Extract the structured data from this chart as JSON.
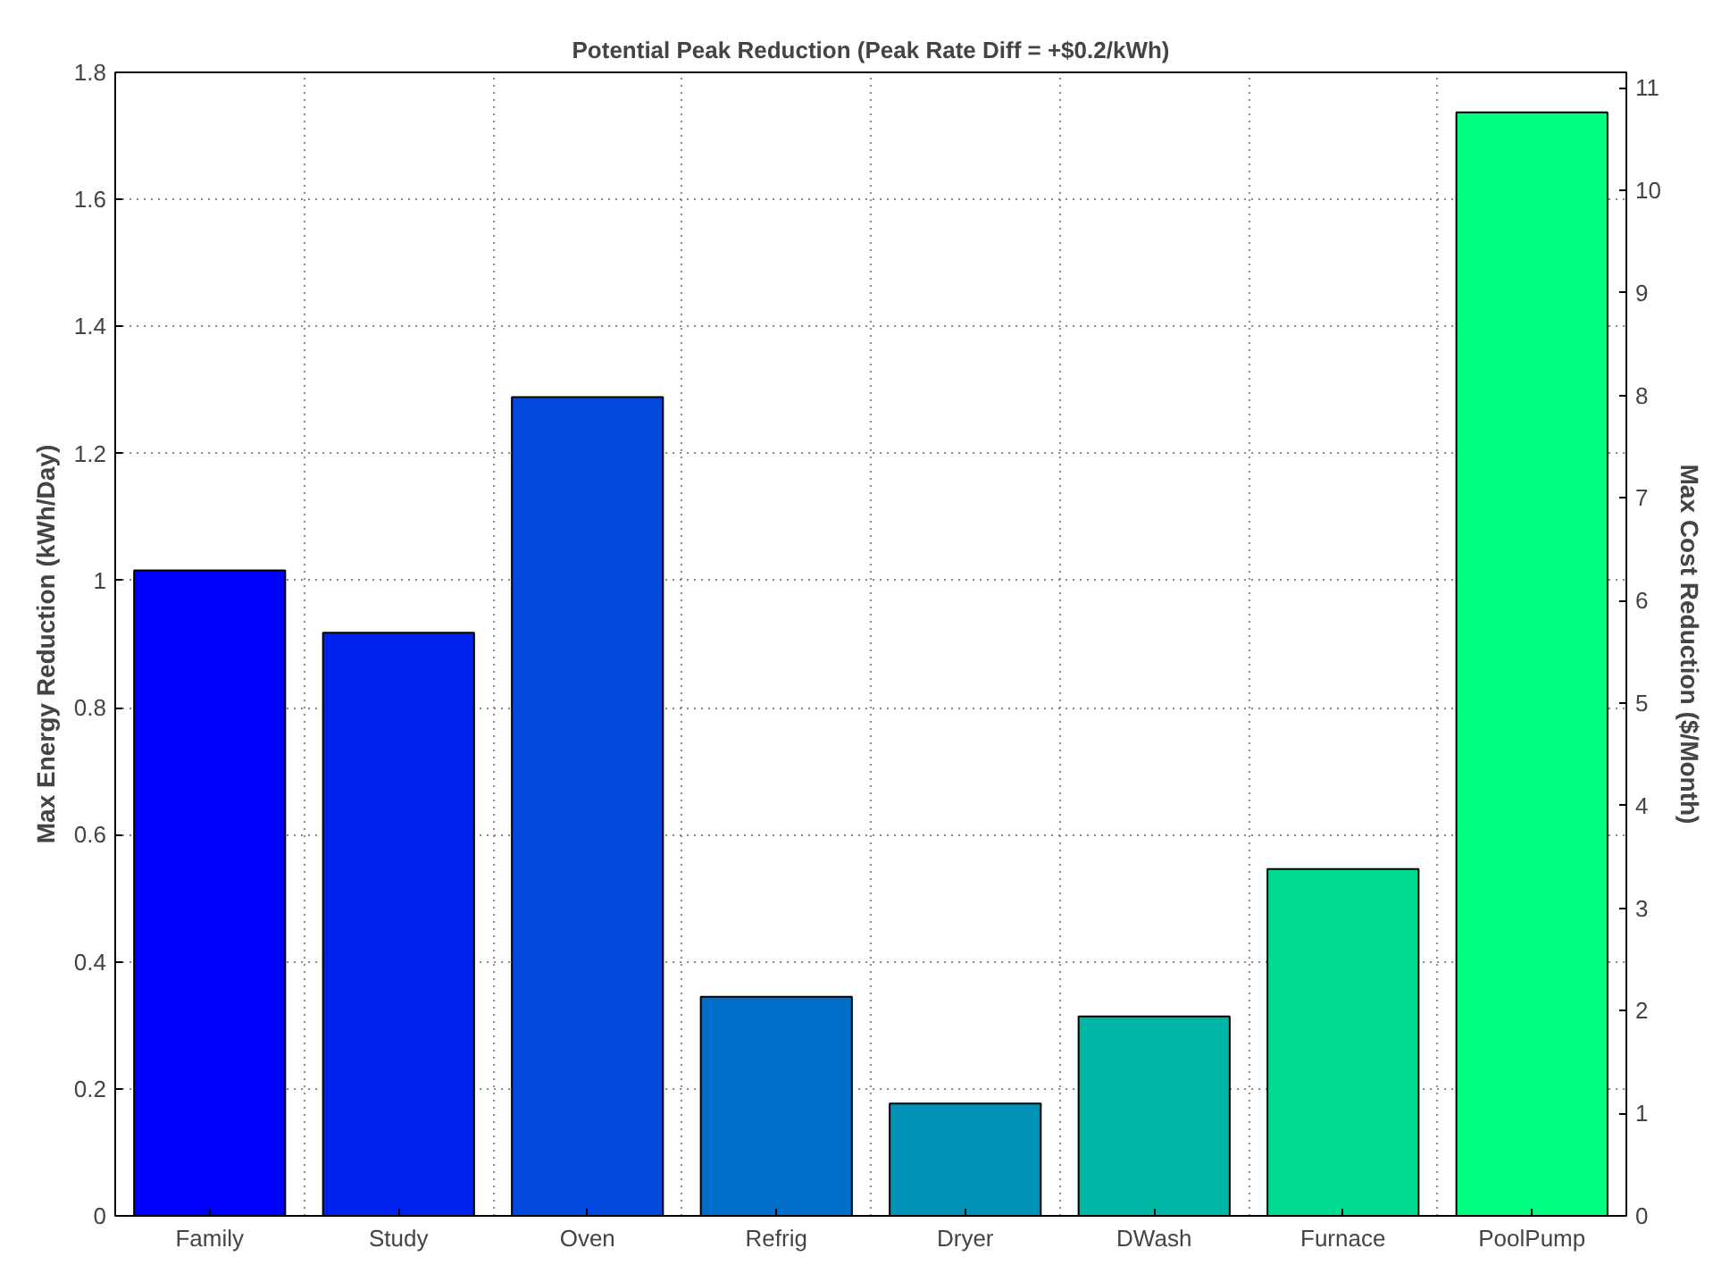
{
  "chart_data": {
    "type": "bar",
    "title": "Potential Peak Reduction (Peak Rate Diff = +$0.2/kWh)",
    "ylabel": "Max Energy Reduction (kWh/Day)",
    "y2label": "Max Cost Reduction ($/Month)",
    "categories": [
      "Family",
      "Study",
      "Oven",
      "Refrig",
      "Dryer",
      "DWash",
      "Furnace",
      "PoolPump"
    ],
    "values": [
      1.016,
      0.918,
      1.289,
      0.345,
      0.177,
      0.314,
      0.546,
      1.737
    ],
    "colors": [
      "#0000ff",
      "#0022ee",
      "#0049dc",
      "#006dc8",
      "#0092b6",
      "#00b6a4",
      "#00db92",
      "#00ff80"
    ],
    "ylim": [
      0,
      1.8
    ],
    "yticks": [
      0,
      0.2,
      0.4,
      0.6,
      0.8,
      1,
      1.2,
      1.4,
      1.6,
      1.8
    ],
    "y2lim": [
      0,
      11.15
    ],
    "y2ticks": [
      0,
      1,
      2,
      3,
      4,
      5,
      6,
      7,
      8,
      9,
      10,
      11
    ],
    "grid": true
  }
}
